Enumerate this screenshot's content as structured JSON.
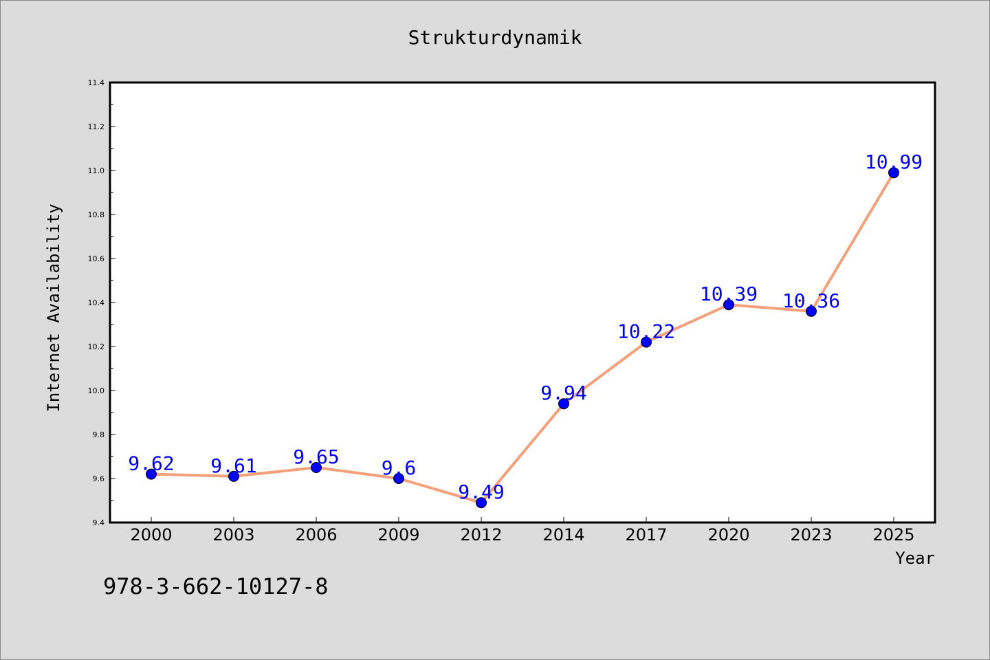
{
  "chart_data": {
    "type": "line",
    "title": "Strukturdynamik",
    "xlabel": "Year",
    "ylabel": "Internet Availability",
    "categories": [
      "2000",
      "2003",
      "2006",
      "2009",
      "2012",
      "2014",
      "2017",
      "2020",
      "2023",
      "2025"
    ],
    "series": [
      {
        "values": [
          9.62,
          9.61,
          9.65,
          9.6,
          9.49,
          9.94,
          10.22,
          10.39,
          10.36,
          10.99
        ],
        "labels": [
          "9.62",
          "9.61",
          "9.65",
          "9.6",
          "9.49",
          "9.94",
          "10.22",
          "10.39",
          "10.36",
          "10.99"
        ],
        "line_color": "#f4a07a",
        "marker_color": "#0000ff"
      }
    ],
    "ylim": [
      9.4,
      11.4
    ],
    "yticks": [
      "9.4",
      "9.6",
      "9.8",
      "10.0",
      "10.2",
      "10.4",
      "10.6",
      "10.8",
      "11.0",
      "11.2",
      "11.4"
    ],
    "grid": false,
    "legend": "none",
    "label_color": "#0000ff"
  },
  "footer_text": "978-3-662-10127-8",
  "colors": {
    "background": "#dcdcdc",
    "plot_background": "#ffffff"
  }
}
